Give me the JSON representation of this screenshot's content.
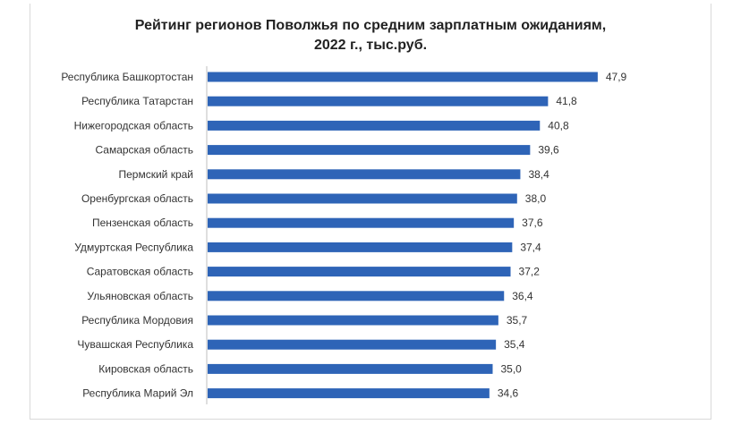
{
  "chart_data": {
    "type": "bar",
    "orientation": "horizontal",
    "title_line1": "Рейтинг регионов Поволжья по средним зарплатным ожиданиям,",
    "title_line2": "2022 г., тыс.руб.",
    "categories": [
      "Республика Башкортостан",
      "Республика Татарстан",
      "Нижегородская область",
      "Самарская область",
      "Пермский край",
      "Оренбургская область",
      "Пензенская область",
      "Удмуртская Республика",
      "Саратовская область",
      "Ульяновская область",
      "Республика Мордовия",
      "Чувашская Республика",
      "Кировская область",
      "Республика Марий Эл"
    ],
    "values": [
      47.9,
      41.8,
      40.8,
      39.6,
      38.4,
      38.0,
      37.6,
      37.4,
      37.2,
      36.4,
      35.7,
      35.4,
      35.0,
      34.6
    ],
    "value_labels": [
      "47,9",
      "41,8",
      "40,8",
      "39,6",
      "38,4",
      "38,0",
      "37,6",
      "37,4",
      "37,2",
      "36,4",
      "35,7",
      "35,4",
      "35,0",
      "34,6"
    ],
    "xlim": [
      0,
      48
    ],
    "bar_color": "#2e64b7",
    "grid": false,
    "legend": "none"
  }
}
